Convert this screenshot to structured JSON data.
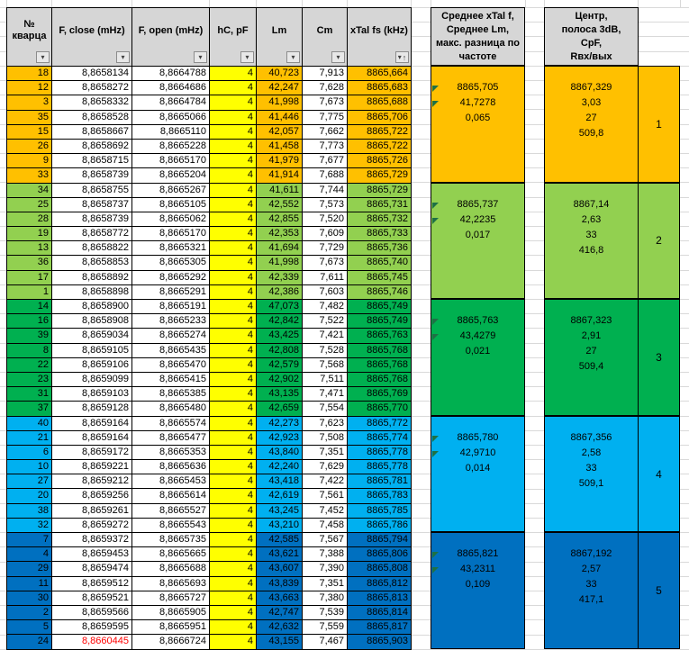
{
  "colors": {
    "group_orange": "#FFC000",
    "group_light_green": "#92D050",
    "group_green": "#00B050",
    "group_cyan": "#00B0F0",
    "group_blue": "#0070C0",
    "yellow_column": "#FFFF00",
    "header_fill": "#D6D6D6",
    "gridline": "#D9D9D9",
    "red_value": "#FF0000",
    "marker_green": "#1E7145"
  },
  "table": {
    "columns": [
      {
        "label": "№\nкварца",
        "filter": "dropdown"
      },
      {
        "label": "F, close (mHz)",
        "filter": "dropdown"
      },
      {
        "label": "F, open (mHz)",
        "filter": "dropdown"
      },
      {
        "label": "hC, pF",
        "filter": "dropdown"
      },
      {
        "label": "Lm",
        "filter": "dropdown"
      },
      {
        "label": "Cm",
        "filter": "dropdown"
      },
      {
        "label": "xTal fs (kHz)",
        "filter": "sort-asc"
      }
    ],
    "groups": [
      {
        "number": "1",
        "color": "#FFC000",
        "rows": [
          {
            "num": "18",
            "f_close": "8,8658134",
            "f_open": "8,8664788",
            "hc": "4",
            "lm": "40,723",
            "cm": "7,913",
            "fs": "8865,664"
          },
          {
            "num": "12",
            "f_close": "8,8658272",
            "f_open": "8,8664686",
            "hc": "4",
            "lm": "42,247",
            "cm": "7,628",
            "fs": "8865,683"
          },
          {
            "num": "3",
            "f_close": "8,8658332",
            "f_open": "8,8664784",
            "hc": "4",
            "lm": "41,998",
            "cm": "7,673",
            "fs": "8865,688"
          },
          {
            "num": "35",
            "f_close": "8,8658528",
            "f_open": "8,8665066",
            "hc": "4",
            "lm": "41,446",
            "cm": "7,775",
            "fs": "8865,706"
          },
          {
            "num": "15",
            "f_close": "8,8658667",
            "f_open": "8,8665110",
            "hc": "4",
            "lm": "42,057",
            "cm": "7,662",
            "fs": "8865,722"
          },
          {
            "num": "26",
            "f_close": "8,8658692",
            "f_open": "8,8665228",
            "hc": "4",
            "lm": "41,458",
            "cm": "7,773",
            "fs": "8865,722"
          },
          {
            "num": "9",
            "f_close": "8,8658715",
            "f_open": "8,8665170",
            "hc": "4",
            "lm": "41,979",
            "cm": "7,677",
            "fs": "8865,726"
          },
          {
            "num": "33",
            "f_close": "8,8658739",
            "f_open": "8,8665204",
            "hc": "4",
            "lm": "41,914",
            "cm": "7,688",
            "fs": "8865,729"
          }
        ],
        "summary_avg": [
          "8865,705",
          "41,7278",
          "0,065"
        ],
        "summary_center": [
          "8867,329",
          "3,03",
          "27",
          "509,8"
        ]
      },
      {
        "number": "2",
        "color": "#92D050",
        "rows": [
          {
            "num": "34",
            "f_close": "8,8658755",
            "f_open": "8,8665267",
            "hc": "4",
            "lm": "41,611",
            "cm": "7,744",
            "fs": "8865,729"
          },
          {
            "num": "25",
            "f_close": "8,8658737",
            "f_open": "8,8665105",
            "hc": "4",
            "lm": "42,552",
            "cm": "7,573",
            "fs": "8865,731"
          },
          {
            "num": "28",
            "f_close": "8,8658739",
            "f_open": "8,8665062",
            "hc": "4",
            "lm": "42,855",
            "cm": "7,520",
            "fs": "8865,732"
          },
          {
            "num": "19",
            "f_close": "8,8658772",
            "f_open": "8,8665170",
            "hc": "4",
            "lm": "42,353",
            "cm": "7,609",
            "fs": "8865,733"
          },
          {
            "num": "13",
            "f_close": "8,8658822",
            "f_open": "8,8665321",
            "hc": "4",
            "lm": "41,694",
            "cm": "7,729",
            "fs": "8865,736"
          },
          {
            "num": "36",
            "f_close": "8,8658853",
            "f_open": "8,8665305",
            "hc": "4",
            "lm": "41,998",
            "cm": "7,673",
            "fs": "8865,740"
          },
          {
            "num": "17",
            "f_close": "8,8658892",
            "f_open": "8,8665292",
            "hc": "4",
            "lm": "42,339",
            "cm": "7,611",
            "fs": "8865,745"
          },
          {
            "num": "1",
            "f_close": "8,8658898",
            "f_open": "8,8665291",
            "hc": "4",
            "lm": "42,386",
            "cm": "7,603",
            "fs": "8865,746"
          }
        ],
        "summary_avg": [
          "8865,737",
          "42,2235",
          "0,017"
        ],
        "summary_center": [
          "8867,14",
          "2,63",
          "33",
          "416,8"
        ]
      },
      {
        "number": "3",
        "color": "#00B050",
        "rows": [
          {
            "num": "14",
            "f_close": "8,8658900",
            "f_open": "8,8665191",
            "hc": "4",
            "lm": "47,073",
            "cm": "7,482",
            "fs": "8865,749"
          },
          {
            "num": "16",
            "f_close": "8,8658908",
            "f_open": "8,8665233",
            "hc": "4",
            "lm": "42,842",
            "cm": "7,522",
            "fs": "8865,749"
          },
          {
            "num": "39",
            "f_close": "8,8659034",
            "f_open": "8,8665274",
            "hc": "4",
            "lm": "43,425",
            "cm": "7,421",
            "fs": "8865,763"
          },
          {
            "num": "8",
            "f_close": "8,8659105",
            "f_open": "8,8665435",
            "hc": "4",
            "lm": "42,808",
            "cm": "7,528",
            "fs": "8865,768"
          },
          {
            "num": "22",
            "f_close": "8,8659106",
            "f_open": "8,8665470",
            "hc": "4",
            "lm": "42,579",
            "cm": "7,568",
            "fs": "8865,768"
          },
          {
            "num": "23",
            "f_close": "8,8659099",
            "f_open": "8,8665415",
            "hc": "4",
            "lm": "42,902",
            "cm": "7,511",
            "fs": "8865,768"
          },
          {
            "num": "31",
            "f_close": "8,8659103",
            "f_open": "8,8665385",
            "hc": "4",
            "lm": "43,135",
            "cm": "7,471",
            "fs": "8865,769"
          },
          {
            "num": "37",
            "f_close": "8,8659128",
            "f_open": "8,8665480",
            "hc": "4",
            "lm": "42,659",
            "cm": "7,554",
            "fs": "8865,770"
          }
        ],
        "summary_avg": [
          "8865,763",
          "43,4279",
          "0,021"
        ],
        "summary_center": [
          "8867,323",
          "2,91",
          "27",
          "509,4"
        ]
      },
      {
        "number": "4",
        "color": "#00B0F0",
        "rows": [
          {
            "num": "40",
            "f_close": "8,8659164",
            "f_open": "8,8665574",
            "hc": "4",
            "lm": "42,273",
            "cm": "7,623",
            "fs": "8865,772"
          },
          {
            "num": "21",
            "f_close": "8,8659164",
            "f_open": "8,8665477",
            "hc": "4",
            "lm": "42,923",
            "cm": "7,508",
            "fs": "8865,774"
          },
          {
            "num": "6",
            "f_close": "8,8659172",
            "f_open": "8,8665353",
            "hc": "4",
            "lm": "43,840",
            "cm": "7,351",
            "fs": "8865,778"
          },
          {
            "num": "10",
            "f_close": "8,8659221",
            "f_open": "8,8665636",
            "hc": "4",
            "lm": "42,240",
            "cm": "7,629",
            "fs": "8865,778"
          },
          {
            "num": "27",
            "f_close": "8,8659212",
            "f_open": "8,8665453",
            "hc": "4",
            "lm": "43,418",
            "cm": "7,422",
            "fs": "8865,781"
          },
          {
            "num": "20",
            "f_close": "8,8659256",
            "f_open": "8,8665614",
            "hc": "4",
            "lm": "42,619",
            "cm": "7,561",
            "fs": "8865,783"
          },
          {
            "num": "38",
            "f_close": "8,8659261",
            "f_open": "8,8665527",
            "hc": "4",
            "lm": "43,245",
            "cm": "7,452",
            "fs": "8865,785"
          },
          {
            "num": "32",
            "f_close": "8,8659272",
            "f_open": "8,8665543",
            "hc": "4",
            "lm": "43,210",
            "cm": "7,458",
            "fs": "8865,786"
          }
        ],
        "summary_avg": [
          "8865,780",
          "42,9710",
          "0,014"
        ],
        "summary_center": [
          "8867,356",
          "2,58",
          "33",
          "509,1"
        ]
      },
      {
        "number": "5",
        "color": "#0070C0",
        "rows": [
          {
            "num": "7",
            "f_close": "8,8659372",
            "f_open": "8,8665735",
            "hc": "4",
            "lm": "42,585",
            "cm": "7,567",
            "fs": "8865,794"
          },
          {
            "num": "4",
            "f_close": "8,8659453",
            "f_open": "8,8665665",
            "hc": "4",
            "lm": "43,621",
            "cm": "7,388",
            "fs": "8865,806"
          },
          {
            "num": "29",
            "f_close": "8,8659474",
            "f_open": "8,8665688",
            "hc": "4",
            "lm": "43,607",
            "cm": "7,390",
            "fs": "8865,808"
          },
          {
            "num": "11",
            "f_close": "8,8659512",
            "f_open": "8,8665693",
            "hc": "4",
            "lm": "43,839",
            "cm": "7,351",
            "fs": "8865,812"
          },
          {
            "num": "30",
            "f_close": "8,8659521",
            "f_open": "8,8665727",
            "hc": "4",
            "lm": "43,663",
            "cm": "7,380",
            "fs": "8865,813"
          },
          {
            "num": "2",
            "f_close": "8,8659566",
            "f_open": "8,8665905",
            "hc": "4",
            "lm": "42,747",
            "cm": "7,539",
            "fs": "8865,814"
          },
          {
            "num": "5",
            "f_close": "8,8659595",
            "f_open": "8,8665951",
            "hc": "4",
            "lm": "42,632",
            "cm": "7,559",
            "fs": "8865,817"
          },
          {
            "num": "24",
            "f_close": "8,8660445",
            "f_close_red": true,
            "f_open": "8,8666724",
            "hc": "4",
            "lm": "43,155",
            "cm": "7,467",
            "fs": "8865,903"
          }
        ],
        "summary_avg": [
          "8865,821",
          "43,2311",
          "0,109"
        ],
        "summary_center": [
          "8867,192",
          "2,57",
          "33",
          "417,1"
        ]
      }
    ]
  },
  "panels": {
    "avg_header": "Среднее xTal f,\nСреднее Lm,\nмакс. разница по\nчастоте",
    "center_header": "Центр,\nполоса 3dB,\nCpF,\nRвх/вых"
  },
  "icons": {
    "filter_dropdown": "▾",
    "sort_ascending": "↑"
  }
}
